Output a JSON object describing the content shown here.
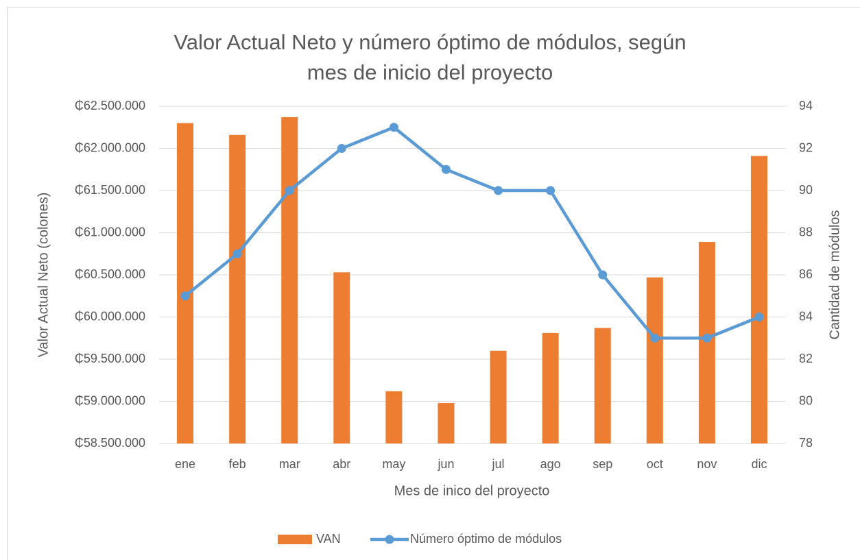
{
  "chart_data": {
    "type": "bar_line",
    "title": "Valor Actual Neto y número óptimo de módulos, según mes de inicio del proyecto",
    "x_label": "Mes de inico del proyecto",
    "y_label": "Valor Actual Neto (colones)",
    "y2_label": "Cantidad de módulos",
    "categories": [
      "ene",
      "feb",
      "mar",
      "abr",
      "may",
      "jun",
      "jul",
      "ago",
      "sep",
      "oct",
      "nov",
      "dic"
    ],
    "series": [
      {
        "name": "VAN",
        "type": "bar",
        "color": "#ED7D31",
        "values": [
          62300000,
          62160000,
          62370000,
          60530000,
          59120000,
          58980000,
          59600000,
          59810000,
          59870000,
          60470000,
          60890000,
          61910000
        ]
      },
      {
        "name": "Número óptimo de módulos",
        "type": "line",
        "axis": "y2",
        "color": "#5B9BD5",
        "values": [
          85,
          87,
          90,
          92,
          93,
          91,
          90,
          90,
          86,
          83,
          83,
          84
        ]
      }
    ],
    "ylim": [
      58500000,
      62500000
    ],
    "yticks": [
      {
        "value": 58500000,
        "label": "₵58.500.000"
      },
      {
        "value": 59000000,
        "label": "₵59.000.000"
      },
      {
        "value": 59500000,
        "label": "₵59.500.000"
      },
      {
        "value": 60000000,
        "label": "₵60.000.000"
      },
      {
        "value": 60500000,
        "label": "₵60.500.000"
      },
      {
        "value": 61000000,
        "label": "₵61.000.000"
      },
      {
        "value": 61500000,
        "label": "₵61.500.000"
      },
      {
        "value": 62000000,
        "label": "₵62.000.000"
      },
      {
        "value": 62500000,
        "label": "₵62.500.000"
      }
    ],
    "y2lim": [
      78,
      94
    ],
    "y2ticks": [
      78,
      80,
      82,
      84,
      86,
      88,
      90,
      92,
      94
    ],
    "grid": true,
    "legend": "bottom"
  }
}
